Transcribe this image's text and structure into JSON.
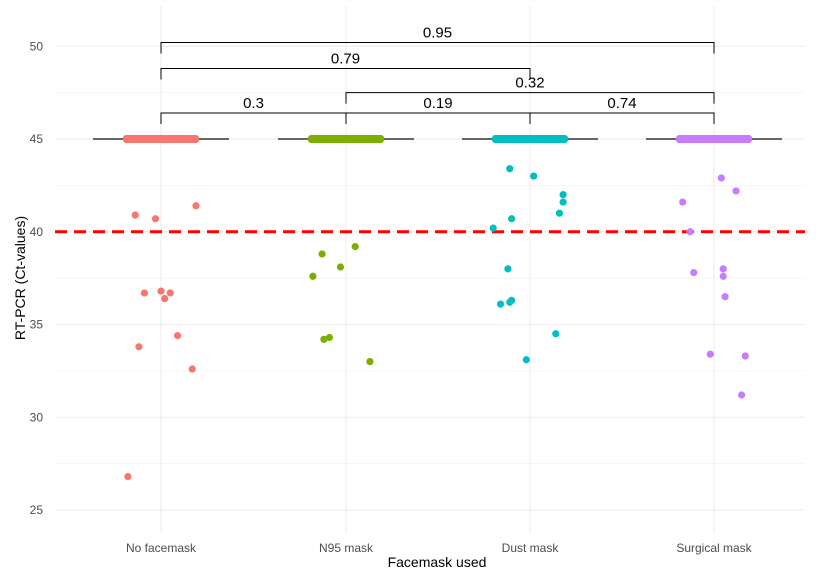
{
  "chart_data": {
    "type": "scatter",
    "subtype": "jittered strip plot with boxplots",
    "xlabel": "Facemask used",
    "ylabel": "RT-PCR (Ct-values)",
    "ylim": [
      24,
      52
    ],
    "yticks": [
      25,
      30,
      35,
      40,
      45,
      50
    ],
    "grid": true,
    "legend": "none",
    "categories": [
      "No facemask",
      "N95 mask",
      "Dust mask",
      "Surgical mask"
    ],
    "colors": [
      "#F8766D",
      "#7CAE00",
      "#00BFC4",
      "#C77CFF"
    ],
    "threshold": {
      "value": 40,
      "color": "#ff0000",
      "style": "dashed"
    },
    "series": [
      {
        "category": "No facemask",
        "points": [
          {
            "x": -0.14,
            "y": 40.9
          },
          {
            "x": -0.03,
            "y": 40.7
          },
          {
            "x": 0.19,
            "y": 41.4
          },
          {
            "x": -0.09,
            "y": 36.7
          },
          {
            "x": 0.0,
            "y": 36.8
          },
          {
            "x": 0.02,
            "y": 36.4
          },
          {
            "x": 0.05,
            "y": 36.7
          },
          {
            "x": 0.09,
            "y": 34.4
          },
          {
            "x": -0.12,
            "y": 33.8
          },
          {
            "x": 0.17,
            "y": 32.6
          },
          {
            "x": -0.18,
            "y": 26.8
          }
        ],
        "box": {
          "min": 45,
          "q1": 45,
          "median": 45,
          "q3": 45,
          "max": 45
        }
      },
      {
        "category": "N95 mask",
        "points": [
          {
            "x": -0.13,
            "y": 38.8
          },
          {
            "x": 0.05,
            "y": 39.2
          },
          {
            "x": -0.03,
            "y": 38.1
          },
          {
            "x": -0.18,
            "y": 37.6
          },
          {
            "x": -0.12,
            "y": 34.2
          },
          {
            "x": -0.09,
            "y": 34.3
          },
          {
            "x": 0.13,
            "y": 33.0
          }
        ],
        "box": {
          "min": 45,
          "q1": 45,
          "median": 45,
          "q3": 45,
          "max": 45
        }
      },
      {
        "category": "Dust mask",
        "points": [
          {
            "x": -0.11,
            "y": 43.4
          },
          {
            "x": 0.02,
            "y": 43.0
          },
          {
            "x": 0.18,
            "y": 42.0
          },
          {
            "x": 0.18,
            "y": 41.6
          },
          {
            "x": 0.16,
            "y": 41.0
          },
          {
            "x": -0.1,
            "y": 40.7
          },
          {
            "x": -0.2,
            "y": 40.2
          },
          {
            "x": -0.12,
            "y": 38.0
          },
          {
            "x": -0.11,
            "y": 36.2
          },
          {
            "x": -0.1,
            "y": 36.3
          },
          {
            "x": -0.16,
            "y": 36.1
          },
          {
            "x": 0.14,
            "y": 34.5
          },
          {
            "x": -0.02,
            "y": 33.1
          }
        ],
        "box": {
          "min": 45,
          "q1": 45,
          "median": 45,
          "q3": 45,
          "max": 45
        }
      },
      {
        "category": "Surgical mask",
        "points": [
          {
            "x": 0.04,
            "y": 42.9
          },
          {
            "x": 0.12,
            "y": 42.2
          },
          {
            "x": -0.17,
            "y": 41.6
          },
          {
            "x": -0.13,
            "y": 40.0
          },
          {
            "x": -0.11,
            "y": 37.8
          },
          {
            "x": 0.05,
            "y": 38.0
          },
          {
            "x": 0.05,
            "y": 37.6
          },
          {
            "x": 0.06,
            "y": 36.5
          },
          {
            "x": -0.02,
            "y": 33.4
          },
          {
            "x": 0.17,
            "y": 33.3
          },
          {
            "x": 0.15,
            "y": 31.2
          }
        ],
        "box": {
          "min": 45,
          "q1": 45,
          "median": 45,
          "q3": 45,
          "max": 45
        }
      }
    ],
    "comparisons": [
      {
        "groups": [
          "No facemask",
          "Surgical mask"
        ],
        "p_label": "0.95",
        "y": 50.2
      },
      {
        "groups": [
          "No facemask",
          "Dust mask"
        ],
        "p_label": "0.79",
        "y": 48.8
      },
      {
        "groups": [
          "N95 mask",
          "Surgical mask"
        ],
        "p_label": "0.32",
        "y": 47.5
      },
      {
        "groups": [
          "No facemask",
          "N95 mask"
        ],
        "p_label": "0.3",
        "y": 46.4
      },
      {
        "groups": [
          "N95 mask",
          "Dust mask"
        ],
        "p_label": "0.19",
        "y": 46.4
      },
      {
        "groups": [
          "Dust mask",
          "Surgical mask"
        ],
        "p_label": "0.74",
        "y": 46.4
      }
    ]
  }
}
